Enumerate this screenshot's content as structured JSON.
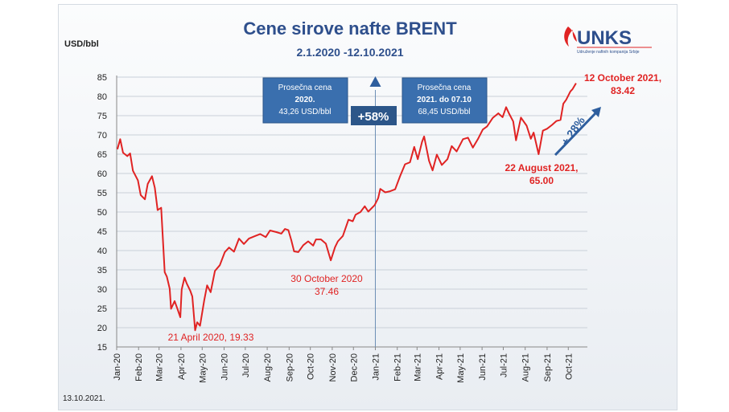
{
  "chart_data": {
    "type": "line",
    "title": "Cene sirove nafte BRENT",
    "subtitle": "2.1.2020 -12.10.2021",
    "ylabel": "USD/bbl",
    "ylim": [
      15,
      85
    ],
    "yticks": [
      15,
      20,
      25,
      30,
      35,
      40,
      45,
      50,
      55,
      60,
      65,
      70,
      75,
      80,
      85
    ],
    "xtick_labels": [
      "Jan-20",
      "Feb-20",
      "Mar-20",
      "Apr-20",
      "May-20",
      "Jun-20",
      "Jul-20",
      "Aug-20",
      "Sep-20",
      "Oct-20",
      "Nov-20",
      "Dec-20",
      "Jan-21",
      "Feb-21",
      "Mar-21",
      "Apr-21",
      "May-21",
      "Jun-21",
      "Jul-21",
      "Aug-21",
      "Sep-21",
      "Oct-21"
    ],
    "series": [
      {
        "color": "#e02323",
        "points": [
          [
            "2020-01-02",
            66.3
          ],
          [
            "2020-01-06",
            68.9
          ],
          [
            "2020-01-10",
            65.4
          ],
          [
            "2020-01-16",
            64.5
          ],
          [
            "2020-01-20",
            65.2
          ],
          [
            "2020-01-24",
            60.7
          ],
          [
            "2020-01-31",
            58.2
          ],
          [
            "2020-02-04",
            54.4
          ],
          [
            "2020-02-10",
            53.3
          ],
          [
            "2020-02-14",
            57.3
          ],
          [
            "2020-02-20",
            59.3
          ],
          [
            "2020-02-24",
            56.3
          ],
          [
            "2020-02-28",
            50.5
          ],
          [
            "2020-03-04",
            51.1
          ],
          [
            "2020-03-09",
            34.4
          ],
          [
            "2020-03-12",
            33.2
          ],
          [
            "2020-03-16",
            30.1
          ],
          [
            "2020-03-18",
            24.9
          ],
          [
            "2020-03-23",
            26.9
          ],
          [
            "2020-03-27",
            24.9
          ],
          [
            "2020-03-31",
            22.7
          ],
          [
            "2020-04-02",
            29.9
          ],
          [
            "2020-04-06",
            33.0
          ],
          [
            "2020-04-09",
            31.5
          ],
          [
            "2020-04-14",
            29.6
          ],
          [
            "2020-04-17",
            28.1
          ],
          [
            "2020-04-21",
            19.33
          ],
          [
            "2020-04-24",
            21.4
          ],
          [
            "2020-04-28",
            20.5
          ],
          [
            "2020-05-04",
            27.2
          ],
          [
            "2020-05-08",
            30.97
          ],
          [
            "2020-05-13",
            29.2
          ],
          [
            "2020-05-19",
            34.7
          ],
          [
            "2020-05-26",
            36.2
          ],
          [
            "2020-06-02",
            39.6
          ],
          [
            "2020-06-08",
            40.8
          ],
          [
            "2020-06-15",
            39.7
          ],
          [
            "2020-06-22",
            43.1
          ],
          [
            "2020-06-29",
            41.7
          ],
          [
            "2020-07-06",
            43.1
          ],
          [
            "2020-07-15",
            43.8
          ],
          [
            "2020-07-22",
            44.3
          ],
          [
            "2020-07-30",
            43.5
          ],
          [
            "2020-08-05",
            45.2
          ],
          [
            "2020-08-14",
            44.8
          ],
          [
            "2020-08-21",
            44.4
          ],
          [
            "2020-08-26",
            45.6
          ],
          [
            "2020-08-31",
            45.3
          ],
          [
            "2020-09-04",
            42.7
          ],
          [
            "2020-09-08",
            39.8
          ],
          [
            "2020-09-14",
            39.6
          ],
          [
            "2020-09-21",
            41.4
          ],
          [
            "2020-09-28",
            42.4
          ],
          [
            "2020-10-05",
            41.3
          ],
          [
            "2020-10-09",
            42.9
          ],
          [
            "2020-10-16",
            42.9
          ],
          [
            "2020-10-23",
            41.8
          ],
          [
            "2020-10-30",
            37.46
          ],
          [
            "2020-11-05",
            40.9
          ],
          [
            "2020-11-09",
            42.4
          ],
          [
            "2020-11-16",
            43.8
          ],
          [
            "2020-11-24",
            48.0
          ],
          [
            "2020-11-30",
            47.6
          ],
          [
            "2020-12-04",
            49.3
          ],
          [
            "2020-12-11",
            50.0
          ],
          [
            "2020-12-17",
            51.5
          ],
          [
            "2020-12-22",
            50.1
          ],
          [
            "2020-12-31",
            51.8
          ],
          [
            "2021-01-05",
            53.6
          ],
          [
            "2021-01-08",
            55.99
          ],
          [
            "2021-01-15",
            55.1
          ],
          [
            "2021-01-22",
            55.4
          ],
          [
            "2021-01-29",
            55.9
          ],
          [
            "2021-02-05",
            59.3
          ],
          [
            "2021-02-12",
            62.4
          ],
          [
            "2021-02-19",
            62.9
          ],
          [
            "2021-02-25",
            66.9
          ],
          [
            "2021-03-02",
            63.7
          ],
          [
            "2021-03-08",
            68.2
          ],
          [
            "2021-03-11",
            69.6
          ],
          [
            "2021-03-18",
            63.3
          ],
          [
            "2021-03-23",
            60.8
          ],
          [
            "2021-03-29",
            64.9
          ],
          [
            "2021-04-05",
            62.2
          ],
          [
            "2021-04-13",
            63.7
          ],
          [
            "2021-04-19",
            67.1
          ],
          [
            "2021-04-26",
            65.7
          ],
          [
            "2021-05-05",
            68.9
          ],
          [
            "2021-05-12",
            69.3
          ],
          [
            "2021-05-19",
            66.7
          ],
          [
            "2021-05-26",
            68.9
          ],
          [
            "2021-06-02",
            71.4
          ],
          [
            "2021-06-08",
            72.2
          ],
          [
            "2021-06-16",
            74.4
          ],
          [
            "2021-06-24",
            75.6
          ],
          [
            "2021-06-30",
            74.6
          ],
          [
            "2021-07-05",
            77.2
          ],
          [
            "2021-07-09",
            75.6
          ],
          [
            "2021-07-15",
            73.5
          ],
          [
            "2021-07-19",
            68.6
          ],
          [
            "2021-07-26",
            74.5
          ],
          [
            "2021-08-03",
            72.4
          ],
          [
            "2021-08-09",
            69.0
          ],
          [
            "2021-08-13",
            70.6
          ],
          [
            "2021-08-20",
            65.0
          ],
          [
            "2021-08-26",
            71.1
          ],
          [
            "2021-09-01",
            71.6
          ],
          [
            "2021-09-08",
            72.6
          ],
          [
            "2021-09-14",
            73.6
          ],
          [
            "2021-09-20",
            73.9
          ],
          [
            "2021-09-24",
            78.1
          ],
          [
            "2021-09-28",
            79.1
          ],
          [
            "2021-10-04",
            81.3
          ],
          [
            "2021-10-07",
            81.9
          ],
          [
            "2021-10-12",
            83.42
          ]
        ]
      }
    ],
    "annotations": [
      {
        "lines": [
          "21 April 2020, 19.33"
        ],
        "bold": false
      },
      {
        "lines": [
          "30 October 2020",
          "37.46"
        ],
        "bold": false
      },
      {
        "lines": [
          "22 August 2021,",
          "65.00"
        ],
        "bold": true
      },
      {
        "lines": [
          "12 October 2021,",
          "83.42"
        ],
        "bold": true
      }
    ],
    "info_boxes": [
      {
        "lines": [
          "Prosečna cena",
          "2020.",
          "43,26 USD/bbl"
        ]
      },
      {
        "lines": [
          "Prosečna cena",
          "2021. do 07.10",
          "68,45 USD/bbl"
        ]
      }
    ],
    "change_labels": {
      "plus58": "+58%",
      "plus28": "+ 28%"
    },
    "colors": {
      "line": "#e02323",
      "title": "#2e4f8c",
      "box": "#3a6fae",
      "arrow": "#2e5e9e"
    },
    "grid": true,
    "legend": "none"
  },
  "logo": {
    "name": "UNKS",
    "subtitle": "Udruženje naftnih kompanija Srbije"
  },
  "footer_date": "13.10.2021."
}
